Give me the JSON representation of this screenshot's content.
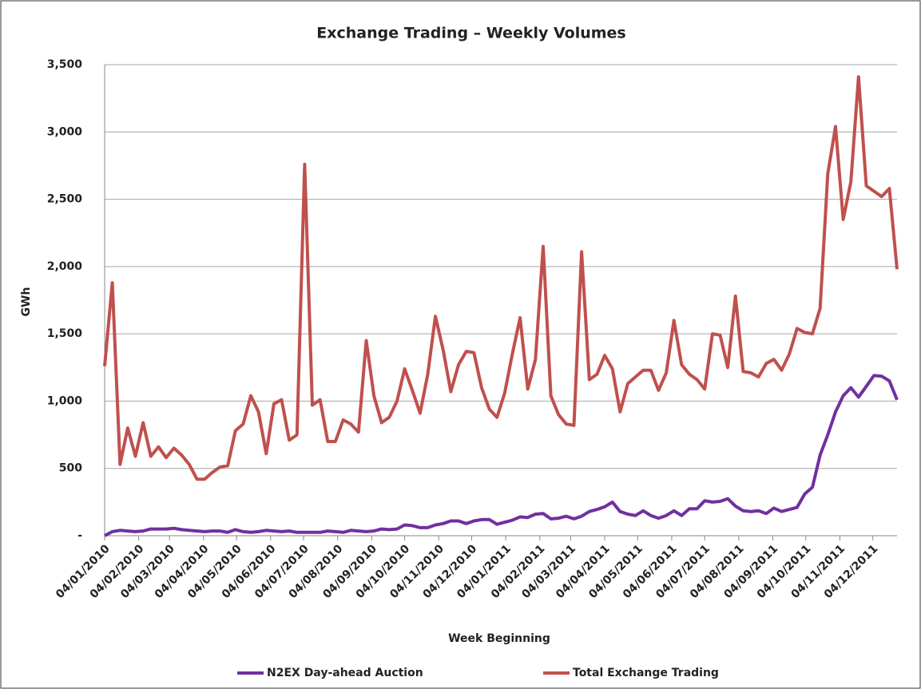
{
  "chart_data": {
    "type": "line",
    "title": "Exchange Trading – Weekly Volumes",
    "xlabel": "Week Beginning",
    "ylabel": "GWh",
    "x": [
      "2010-01-04",
      "2010-01-11",
      "2010-01-18",
      "2010-01-25",
      "2010-02-01",
      "2010-02-08",
      "2010-02-15",
      "2010-02-22",
      "2010-03-01",
      "2010-03-08",
      "2010-03-15",
      "2010-03-22",
      "2010-03-29",
      "2010-04-05",
      "2010-04-12",
      "2010-04-19",
      "2010-04-26",
      "2010-05-03",
      "2010-05-10",
      "2010-05-17",
      "2010-05-24",
      "2010-05-31",
      "2010-06-07",
      "2010-06-14",
      "2010-06-21",
      "2010-06-28",
      "2010-07-05",
      "2010-07-12",
      "2010-07-19",
      "2010-07-26",
      "2010-08-02",
      "2010-08-09",
      "2010-08-16",
      "2010-08-23",
      "2010-08-30",
      "2010-09-06",
      "2010-09-13",
      "2010-09-20",
      "2010-09-27",
      "2010-10-04",
      "2010-10-11",
      "2010-10-18",
      "2010-10-25",
      "2010-11-01",
      "2010-11-08",
      "2010-11-15",
      "2010-11-22",
      "2010-11-29",
      "2010-12-06",
      "2010-12-13",
      "2010-12-20",
      "2010-12-27",
      "2011-01-03",
      "2011-01-10",
      "2011-01-17",
      "2011-01-24",
      "2011-01-31",
      "2011-02-07",
      "2011-02-14",
      "2011-02-21",
      "2011-02-28",
      "2011-03-07",
      "2011-03-14",
      "2011-03-21",
      "2011-03-28",
      "2011-04-04",
      "2011-04-11",
      "2011-04-18",
      "2011-04-25",
      "2011-05-02",
      "2011-05-09",
      "2011-05-16",
      "2011-05-23",
      "2011-05-30",
      "2011-06-06",
      "2011-06-13",
      "2011-06-20",
      "2011-06-27",
      "2011-07-04",
      "2011-07-11",
      "2011-07-18",
      "2011-07-25",
      "2011-08-01",
      "2011-08-08",
      "2011-08-15",
      "2011-08-22",
      "2011-08-29",
      "2011-09-05",
      "2011-09-12",
      "2011-09-19",
      "2011-09-26",
      "2011-10-03",
      "2011-10-10",
      "2011-10-17",
      "2011-10-24",
      "2011-10-31",
      "2011-11-07",
      "2011-11-14",
      "2011-11-21",
      "2011-11-28",
      "2011-12-05",
      "2011-12-12",
      "2011-12-19",
      "2011-12-26"
    ],
    "series": [
      {
        "name": "N2EX Day-ahead Auction",
        "color": "#7030a0",
        "values": [
          0,
          30,
          40,
          35,
          30,
          35,
          50,
          50,
          50,
          55,
          45,
          40,
          35,
          30,
          35,
          35,
          25,
          45,
          30,
          25,
          30,
          40,
          35,
          30,
          35,
          25,
          25,
          25,
          25,
          35,
          30,
          25,
          40,
          35,
          30,
          35,
          50,
          45,
          50,
          80,
          75,
          60,
          60,
          80,
          90,
          110,
          110,
          90,
          110,
          120,
          120,
          85,
          100,
          115,
          140,
          135,
          160,
          165,
          125,
          130,
          145,
          125,
          145,
          180,
          195,
          215,
          250,
          180,
          160,
          150,
          185,
          150,
          130,
          150,
          185,
          150,
          200,
          200,
          260,
          250,
          255,
          275,
          220,
          185,
          180,
          185,
          165,
          205,
          180,
          195,
          210,
          310,
          360,
          600,
          750,
          920,
          1040,
          1100,
          1030,
          1110,
          1190,
          1185,
          1150,
          1010
        ]
      },
      {
        "name": "Total Exchange Trading",
        "color": "#c0504d",
        "values": [
          1260,
          1880,
          530,
          800,
          590,
          840,
          590,
          660,
          580,
          650,
          600,
          530,
          420,
          420,
          470,
          510,
          520,
          780,
          830,
          1040,
          920,
          610,
          980,
          1010,
          710,
          750,
          2760,
          970,
          1010,
          700,
          700,
          860,
          830,
          770,
          1450,
          1040,
          840,
          880,
          1000,
          1240,
          1080,
          910,
          1200,
          1630,
          1380,
          1070,
          1270,
          1370,
          1360,
          1100,
          940,
          880,
          1060,
          1350,
          1620,
          1090,
          1310,
          2150,
          1040,
          900,
          830,
          820,
          2110,
          1160,
          1200,
          1340,
          1240,
          920,
          1130,
          1180,
          1230,
          1230,
          1080,
          1210,
          1600,
          1270,
          1200,
          1160,
          1090,
          1500,
          1490,
          1250,
          1780,
          1220,
          1210,
          1180,
          1280,
          1310,
          1230,
          1350,
          1540,
          1510,
          1500,
          1690,
          2690,
          3040,
          2350,
          2630,
          3410,
          2600,
          2560,
          2520,
          2580,
          1980
        ]
      }
    ],
    "xlim": [
      "2010-01-04",
      "2011-12-26"
    ],
    "xticks": [
      {
        "value": "2010-01-04",
        "label": "04/01/2010"
      },
      {
        "value": "2010-02-04",
        "label": "04/02/2010"
      },
      {
        "value": "2010-03-04",
        "label": "04/03/2010"
      },
      {
        "value": "2010-04-04",
        "label": "04/04/2010"
      },
      {
        "value": "2010-05-04",
        "label": "04/05/2010"
      },
      {
        "value": "2010-06-04",
        "label": "04/06/2010"
      },
      {
        "value": "2010-07-04",
        "label": "04/07/2010"
      },
      {
        "value": "2010-08-04",
        "label": "04/08/2010"
      },
      {
        "value": "2010-09-04",
        "label": "04/09/2010"
      },
      {
        "value": "2010-10-04",
        "label": "04/10/2010"
      },
      {
        "value": "2010-11-04",
        "label": "04/11/2010"
      },
      {
        "value": "2010-12-04",
        "label": "04/12/2010"
      },
      {
        "value": "2011-01-04",
        "label": "04/01/2011"
      },
      {
        "value": "2011-02-04",
        "label": "04/02/2011"
      },
      {
        "value": "2011-03-04",
        "label": "04/03/2011"
      },
      {
        "value": "2011-04-04",
        "label": "04/04/2011"
      },
      {
        "value": "2011-05-04",
        "label": "04/05/2011"
      },
      {
        "value": "2011-06-04",
        "label": "04/06/2011"
      },
      {
        "value": "2011-07-04",
        "label": "04/07/2011"
      },
      {
        "value": "2011-08-04",
        "label": "04/08/2011"
      },
      {
        "value": "2011-09-04",
        "label": "04/09/2011"
      },
      {
        "value": "2011-10-04",
        "label": "04/10/2011"
      },
      {
        "value": "2011-11-04",
        "label": "04/11/2011"
      },
      {
        "value": "2011-12-04",
        "label": "04/12/2011"
      }
    ],
    "ylim": [
      0,
      3500
    ],
    "yticks": [
      {
        "value": 0,
        "label": "-"
      },
      500,
      {
        "value": 1000,
        "label": "1,000"
      },
      {
        "value": 1500,
        "label": "1,500"
      },
      {
        "value": 2000,
        "label": "2,000"
      },
      {
        "value": 2500,
        "label": "2,500"
      },
      {
        "value": 3000,
        "label": "3,000"
      },
      {
        "value": 3500,
        "label": "3,500"
      }
    ],
    "grid": true,
    "legend": "bottom"
  }
}
